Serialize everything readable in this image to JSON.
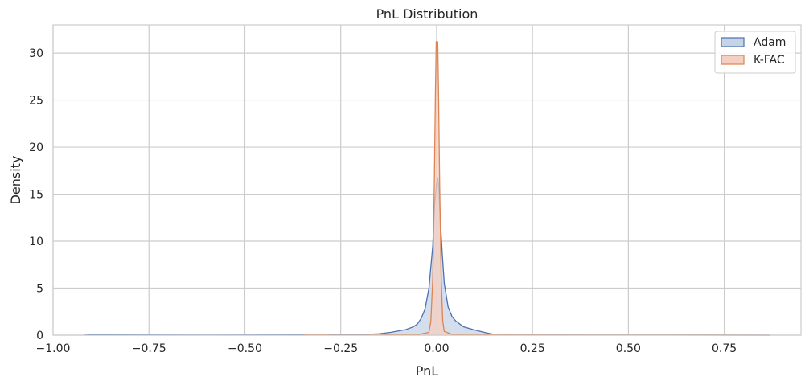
{
  "chart_data": {
    "type": "area",
    "title": "PnL Distribution",
    "xlabel": "PnL",
    "ylabel": "Density",
    "xlim": [
      -1.0,
      0.95
    ],
    "ylim": [
      0,
      33
    ],
    "grid": true,
    "legend_position": "top-right",
    "x_ticks": [
      -1.0,
      -0.75,
      -0.5,
      -0.25,
      0.0,
      0.25,
      0.5,
      0.75
    ],
    "x_tick_labels": [
      "−1.00",
      "−0.75",
      "−0.50",
      "−0.25",
      "0.00",
      "0.25",
      "0.50",
      "0.75"
    ],
    "y_ticks": [
      0,
      5,
      10,
      15,
      20,
      25,
      30
    ],
    "y_tick_labels": [
      "0",
      "5",
      "10",
      "15",
      "20",
      "25",
      "30"
    ],
    "series": [
      {
        "name": "Adam",
        "color": "#4c72b0",
        "fill": "#c6d3e7",
        "points": [
          [
            -0.92,
            0.0
          ],
          [
            -0.9,
            0.05
          ],
          [
            -0.85,
            0.03
          ],
          [
            -0.6,
            0.01
          ],
          [
            -0.3,
            0.03
          ],
          [
            -0.2,
            0.06
          ],
          [
            -0.15,
            0.15
          ],
          [
            -0.12,
            0.3
          ],
          [
            -0.1,
            0.45
          ],
          [
            -0.08,
            0.6
          ],
          [
            -0.06,
            0.9
          ],
          [
            -0.05,
            1.2
          ],
          [
            -0.04,
            1.8
          ],
          [
            -0.03,
            2.8
          ],
          [
            -0.02,
            5.0
          ],
          [
            -0.01,
            9.5
          ],
          [
            -0.005,
            14.0
          ],
          [
            0.0,
            16.2
          ],
          [
            0.003,
            16.8
          ],
          [
            0.006,
            15.5
          ],
          [
            0.01,
            12.0
          ],
          [
            0.015,
            8.5
          ],
          [
            0.02,
            5.5
          ],
          [
            0.03,
            3.0
          ],
          [
            0.04,
            2.0
          ],
          [
            0.05,
            1.5
          ],
          [
            0.07,
            0.9
          ],
          [
            0.1,
            0.55
          ],
          [
            0.13,
            0.25
          ],
          [
            0.15,
            0.08
          ],
          [
            0.2,
            0.03
          ],
          [
            0.4,
            0.01
          ],
          [
            0.7,
            0.01
          ],
          [
            0.87,
            0.0
          ]
        ]
      },
      {
        "name": "K-FAC",
        "color": "#dd8452",
        "fill": "#f5cfbf",
        "points": [
          [
            -0.35,
            0.0
          ],
          [
            -0.3,
            0.12
          ],
          [
            -0.28,
            0.02
          ],
          [
            -0.2,
            0.01
          ],
          [
            -0.05,
            0.05
          ],
          [
            -0.02,
            0.3
          ],
          [
            -0.015,
            1.5
          ],
          [
            -0.01,
            6.0
          ],
          [
            -0.006,
            16.0
          ],
          [
            -0.003,
            26.0
          ],
          [
            -0.001,
            31.2
          ],
          [
            0.003,
            31.2
          ],
          [
            0.005,
            26.0
          ],
          [
            0.008,
            16.0
          ],
          [
            0.012,
            6.0
          ],
          [
            0.016,
            1.5
          ],
          [
            0.02,
            0.4
          ],
          [
            0.04,
            0.1
          ],
          [
            0.1,
            0.05
          ],
          [
            0.15,
            0.03
          ],
          [
            0.2,
            0.02
          ],
          [
            0.4,
            0.01
          ],
          [
            0.6,
            0.01
          ],
          [
            0.87,
            0.0
          ]
        ]
      }
    ]
  }
}
